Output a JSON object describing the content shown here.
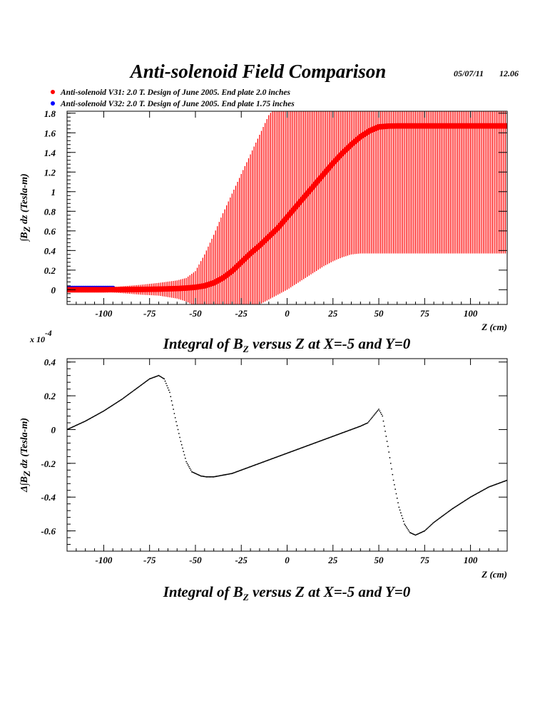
{
  "header": {
    "title": "Anti-solenoid Field Comparison",
    "date": "05/07/11",
    "time": "12.06"
  },
  "legend": [
    {
      "label": "Anti-solenoid V31: 2.0 T. Design of June 2005. End plate 2.0 inches",
      "color": "#ff0000"
    },
    {
      "label": "Anti-solenoid V32: 2.0 T. Design of June 2005. End plate 1.75 inches",
      "color": "#0000ff"
    }
  ],
  "chart_data": [
    {
      "type": "scatter",
      "xlim": [
        -120,
        120
      ],
      "ylim": [
        -0.15,
        1.82
      ],
      "x_ticks": [
        -100,
        -75,
        -50,
        -25,
        0,
        25,
        50,
        75,
        100
      ],
      "x_tick_labels": [
        "-100",
        "-75",
        "-50",
        "-25",
        "0",
        "25",
        "50",
        "75",
        "100"
      ],
      "y_ticks": [
        0,
        0.2,
        0.4,
        0.6,
        0.8,
        1,
        1.2,
        1.4,
        1.6,
        1.8
      ],
      "y_tick_labels": [
        "0",
        "0.2",
        "0.4",
        "0.6",
        "0.8",
        "1",
        "1.2",
        "1.4",
        "1.6",
        "1.8"
      ],
      "xlabel": "Z (cm)",
      "ylabel": {
        "pre": "∫B",
        "sub": "Z",
        "post": " dz  (Tesla-m)"
      },
      "caption": {
        "pre": "Integral of B",
        "sub": "Z",
        "post": " versus Z at X=-5 and Y=0"
      },
      "grid": false,
      "series": [
        {
          "name": "Anti-solenoid V31",
          "color": "#ff0000",
          "x": [
            -120,
            -100,
            -80,
            -70,
            -60,
            -55,
            -50,
            -45,
            -40,
            -35,
            -30,
            -25,
            -20,
            -15,
            -10,
            -5,
            0,
            5,
            10,
            15,
            20,
            25,
            30,
            35,
            40,
            45,
            50,
            55,
            60,
            80,
            100,
            120
          ],
          "y": [
            0.0,
            0.0,
            0.003,
            0.006,
            0.012,
            0.017,
            0.025,
            0.04,
            0.07,
            0.12,
            0.19,
            0.28,
            0.37,
            0.45,
            0.54,
            0.63,
            0.74,
            0.85,
            0.96,
            1.07,
            1.18,
            1.29,
            1.39,
            1.48,
            1.56,
            1.62,
            1.66,
            1.668,
            1.67,
            1.67,
            1.67,
            1.67
          ],
          "error_upper": [
            0.01,
            0.02,
            0.05,
            0.07,
            0.095,
            0.12,
            0.19,
            0.36,
            0.56,
            0.78,
            0.98,
            1.18,
            1.38,
            1.58,
            1.78,
            1.9,
            1.9,
            1.9,
            1.9,
            1.9,
            1.9,
            1.9,
            1.9,
            1.9,
            1.9,
            1.9,
            1.9,
            1.9,
            1.9,
            1.9,
            1.9,
            1.9
          ],
          "error_lower": [
            -0.01,
            -0.02,
            -0.05,
            -0.06,
            -0.09,
            -0.12,
            -0.17,
            -0.2,
            -0.2,
            -0.2,
            -0.2,
            -0.2,
            -0.2,
            -0.15,
            -0.1,
            -0.05,
            0.0,
            0.06,
            0.12,
            0.18,
            0.24,
            0.29,
            0.33,
            0.36,
            0.37,
            0.37,
            0.37,
            0.37,
            0.37,
            0.37,
            0.37,
            0.37
          ]
        },
        {
          "name": "Anti-solenoid V32",
          "color": "#0000ff",
          "x": [
            -120,
            -110,
            -100,
            -95
          ],
          "y": [
            0.012,
            0.012,
            0.012,
            0.012
          ]
        }
      ]
    },
    {
      "type": "scatter",
      "xlim": [
        -120,
        120
      ],
      "ylim": [
        -0.72,
        0.42
      ],
      "exponent": {
        "pre": "x 10",
        "sup": "-4"
      },
      "x_ticks": [
        -100,
        -75,
        -50,
        -25,
        0,
        25,
        50,
        75,
        100
      ],
      "x_tick_labels": [
        "-100",
        "-75",
        "-50",
        "-25",
        "0",
        "25",
        "50",
        "75",
        "100"
      ],
      "y_ticks": [
        -0.6,
        -0.4,
        -0.2,
        0,
        0.2,
        0.4
      ],
      "y_tick_labels": [
        "-0.6",
        "-0.4",
        "-0.2",
        "0",
        "0.2",
        "0.4"
      ],
      "xlabel": "Z (cm)",
      "ylabel": {
        "pre": "Δ∫B",
        "sub": "Z",
        "post": " dz  (Tesla-m)"
      },
      "caption": {
        "pre": "Integral of B",
        "sub": "Z",
        "post": " versus Z at X=-5 and Y=0"
      },
      "grid": false,
      "series": [
        {
          "color": "#000000",
          "x": [
            -120,
            -110,
            -100,
            -90,
            -80,
            -75,
            -70,
            -67,
            -64,
            -61,
            -58,
            -55,
            -52,
            -50,
            -47,
            -44,
            -40,
            -30,
            -20,
            -10,
            0,
            10,
            20,
            30,
            40,
            44,
            47,
            50,
            52,
            55,
            58,
            61,
            64,
            67,
            70,
            75,
            80,
            90,
            100,
            110,
            120
          ],
          "y": [
            0.0,
            0.05,
            0.11,
            0.18,
            0.26,
            0.3,
            0.32,
            0.3,
            0.22,
            0.07,
            -0.07,
            -0.19,
            -0.25,
            -0.26,
            -0.275,
            -0.28,
            -0.28,
            -0.26,
            -0.22,
            -0.18,
            -0.14,
            -0.1,
            -0.06,
            -0.02,
            0.02,
            0.04,
            0.08,
            0.12,
            0.08,
            -0.1,
            -0.3,
            -0.46,
            -0.56,
            -0.61,
            -0.625,
            -0.6,
            -0.55,
            -0.47,
            -0.4,
            -0.34,
            -0.3
          ]
        }
      ]
    }
  ]
}
